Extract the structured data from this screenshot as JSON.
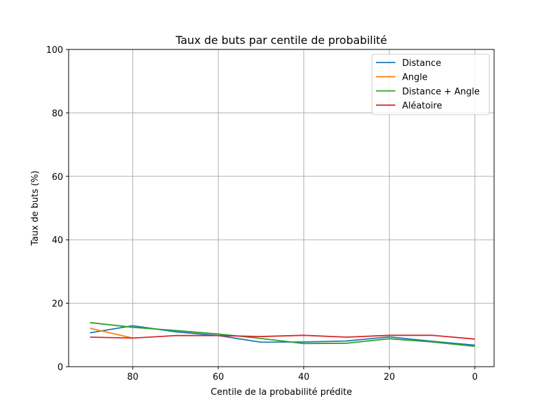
{
  "chart_data": {
    "type": "line",
    "title": "Taux de buts par centile de probabilité",
    "xlabel": "Centile de la probabilité prédite",
    "ylabel": "Taux de buts (%)",
    "xlim": [
      95,
      -4.5
    ],
    "ylim": [
      0,
      100
    ],
    "x_ticks": [
      80,
      60,
      40,
      20,
      0
    ],
    "y_ticks": [
      0,
      20,
      40,
      60,
      80,
      100
    ],
    "grid": true,
    "legend_position": "top-right",
    "series": [
      {
        "name": "Distance",
        "color": "#1f77b4",
        "x": [
          90,
          80,
          70,
          60,
          50,
          40,
          30,
          20,
          10,
          0
        ],
        "values": [
          10.7,
          12.9,
          11.0,
          9.8,
          7.7,
          7.8,
          8.1,
          9.4,
          8.0,
          6.8
        ]
      },
      {
        "name": "Angle",
        "color": "#ff7f0e",
        "x": [
          90,
          80
        ],
        "values": [
          12.1,
          9.0
        ]
      },
      {
        "name": "Distance + Angle",
        "color": "#2ca02c",
        "x": [
          90,
          80,
          70,
          60,
          50,
          40,
          30,
          20,
          10,
          0
        ],
        "values": [
          13.9,
          12.4,
          11.4,
          10.3,
          8.9,
          7.3,
          7.4,
          8.8,
          7.8,
          6.4
        ]
      },
      {
        "name": "Aléatoire",
        "color": "#d62728",
        "x": [
          90,
          80,
          70,
          60,
          50,
          40,
          30,
          20,
          10,
          0
        ],
        "values": [
          9.3,
          9.0,
          9.8,
          9.8,
          9.5,
          9.9,
          9.3,
          9.9,
          9.9,
          8.7
        ]
      }
    ]
  }
}
